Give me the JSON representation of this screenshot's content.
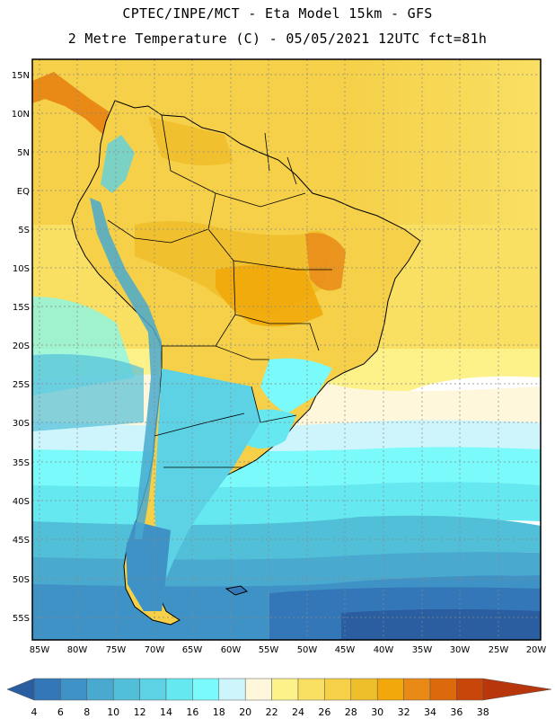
{
  "header": {
    "line1": "CPTEC/INPE/MCT -  Eta Model 15km - GFS",
    "line2": "2 Metre Temperature (C) - 05/05/2021 12UTC fct=81h"
  },
  "map": {
    "lat_labels": [
      "15N",
      "10N",
      "5N",
      "EQ",
      "5S",
      "10S",
      "15S",
      "20S",
      "25S",
      "30S",
      "35S",
      "40S",
      "45S",
      "50S",
      "55S"
    ],
    "lon_labels": [
      "85W",
      "80W",
      "75W",
      "70W",
      "65W",
      "60W",
      "55W",
      "50W",
      "45W",
      "40W",
      "35W",
      "30W",
      "25W",
      "20W"
    ]
  },
  "colorbar": {
    "labels": [
      "4",
      "6",
      "8",
      "10",
      "12",
      "14",
      "16",
      "18",
      "20",
      "22",
      "24",
      "26",
      "28",
      "30",
      "32",
      "34",
      "36",
      "38"
    ],
    "colors": [
      "#2a5ea0",
      "#3477b8",
      "#3f92c6",
      "#49a9cf",
      "#52bfd9",
      "#5dd2e4",
      "#66e8f0",
      "#7bfafb",
      "#cdf5fb",
      "#fff7dc",
      "#fdf28a",
      "#f9df62",
      "#f5d048",
      "#efbe2b",
      "#f2a80a",
      "#e98a17",
      "#dc6a0c",
      "#c9460a",
      "#b8360c"
    ]
  }
}
